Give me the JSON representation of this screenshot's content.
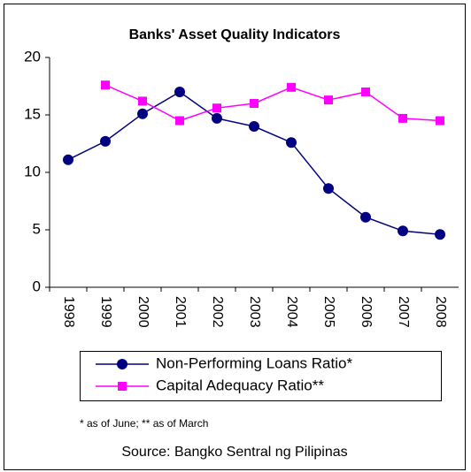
{
  "chart_data": {
    "type": "line",
    "title": "Banks' Asset Quality Indicators",
    "categories": [
      "1998",
      "1999",
      "2000",
      "2001",
      "2002",
      "2003",
      "2004",
      "2005",
      "2006",
      "2007",
      "2008"
    ],
    "series": [
      {
        "name": "Non-Performing Loans Ratio*",
        "color": "#000080",
        "marker": "circle",
        "values": [
          11.1,
          12.7,
          15.1,
          17.0,
          14.7,
          14.0,
          12.6,
          8.6,
          6.1,
          4.9,
          4.6
        ]
      },
      {
        "name": "Capital Adequacy Ratio**",
        "color": "#ff00ff",
        "marker": "square",
        "values": [
          null,
          17.6,
          16.2,
          14.5,
          15.6,
          16.0,
          17.4,
          16.3,
          17.0,
          14.7,
          14.5
        ]
      }
    ],
    "ylim": [
      0,
      20
    ],
    "yticks": [
      0,
      5,
      10,
      15,
      20
    ],
    "grid": false,
    "legend": "bottom",
    "footnote": "* as of June; ** as of March",
    "source": "Source: Bangko Sentral ng Pilipinas"
  }
}
